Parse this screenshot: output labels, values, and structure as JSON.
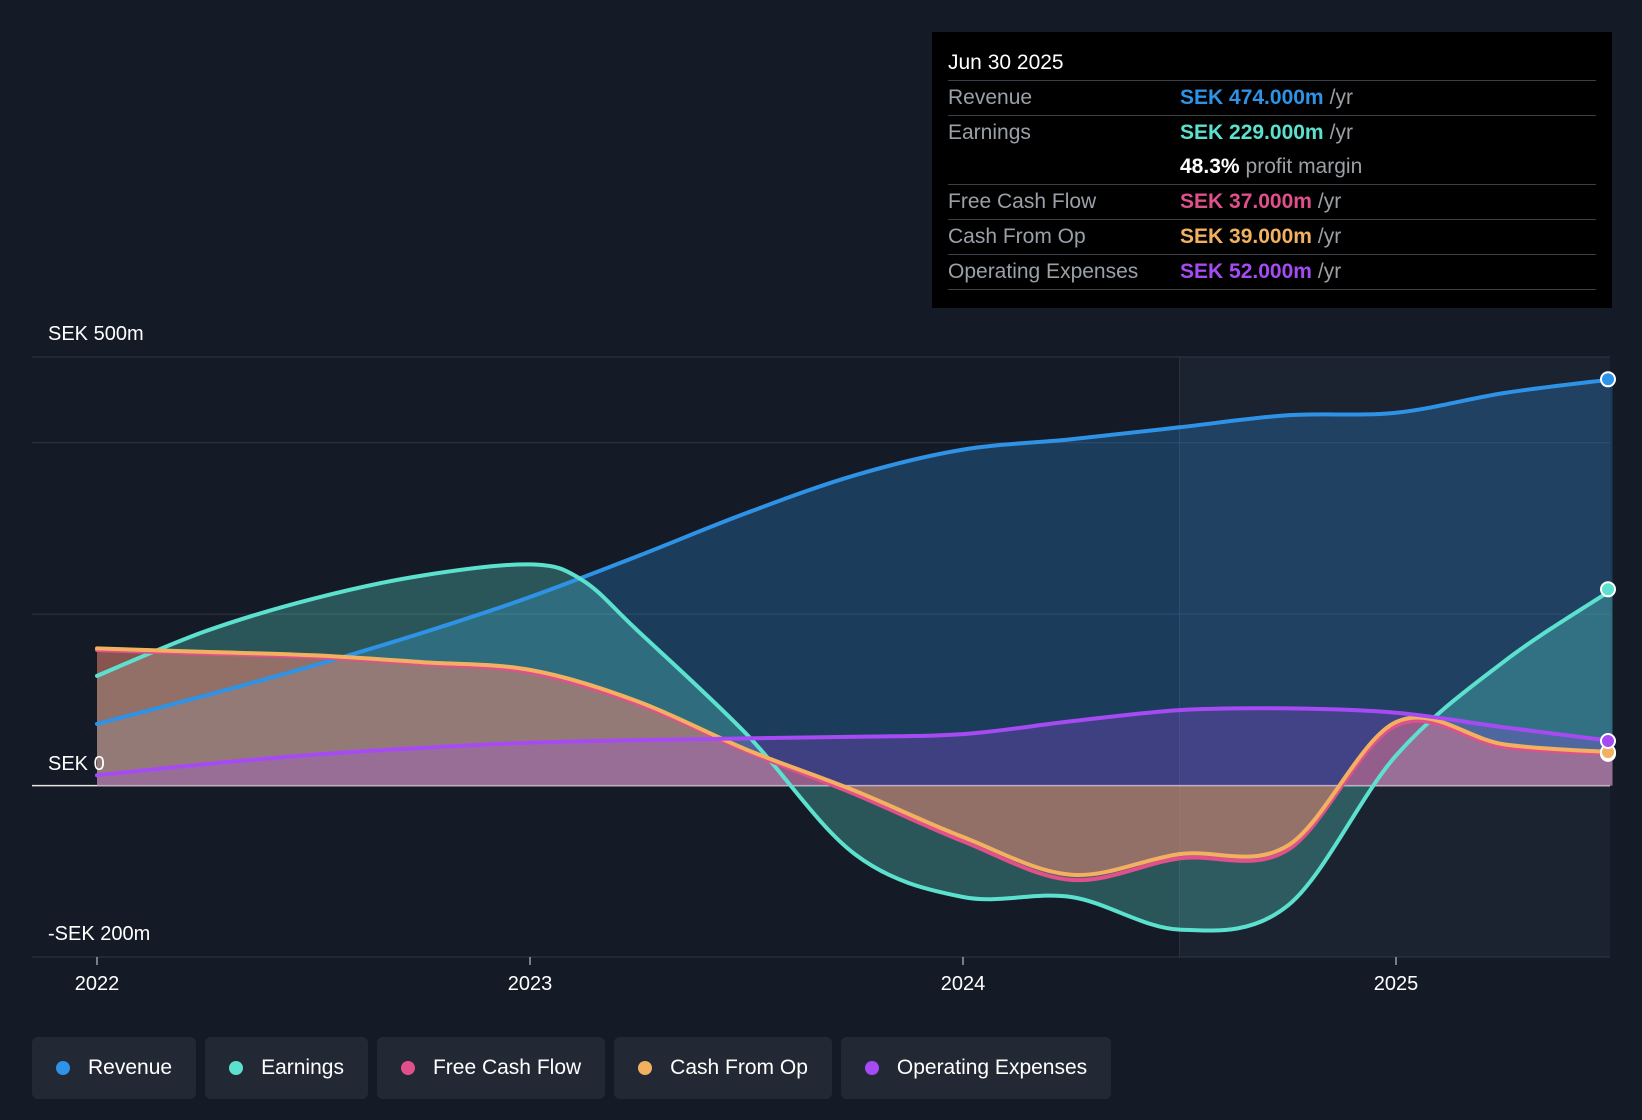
{
  "tooltip": {
    "date": "Jun 30 2025",
    "rows": [
      {
        "label": "Revenue",
        "value": "SEK 474.000m",
        "unit": "/yr",
        "color": "#2e93e6"
      },
      {
        "label": "Earnings",
        "value": "SEK 229.000m",
        "unit": "/yr",
        "color": "#5ce1cf"
      },
      {
        "label": "",
        "value": "48.3%",
        "unit": "profit margin",
        "color": "#ffffff"
      },
      {
        "label": "Free Cash Flow",
        "value": "SEK 37.000m",
        "unit": "/yr",
        "color": "#e0508a"
      },
      {
        "label": "Cash From Op",
        "value": "SEK 39.000m",
        "unit": "/yr",
        "color": "#f2b160"
      },
      {
        "label": "Operating Expenses",
        "value": "SEK 52.000m",
        "unit": "/yr",
        "color": "#a64bf4"
      }
    ]
  },
  "legend": [
    {
      "label": "Revenue",
      "color": "#2e93e6"
    },
    {
      "label": "Earnings",
      "color": "#5ce1cf"
    },
    {
      "label": "Free Cash Flow",
      "color": "#e0508a"
    },
    {
      "label": "Cash From Op",
      "color": "#f2b160"
    },
    {
      "label": "Operating Expenses",
      "color": "#a64bf4"
    }
  ],
  "chart_data": {
    "type": "area",
    "title": "",
    "xlabel": "",
    "ylabel": "",
    "y_axis_labels": [
      "SEK 500m",
      "SEK 0",
      "-SEK 200m"
    ],
    "x_ticks": [
      {
        "label": "2022",
        "value": 2022.0
      },
      {
        "label": "2023",
        "value": 2023.0
      },
      {
        "label": "2024",
        "value": 2024.0
      },
      {
        "label": "2025",
        "value": 2025.0
      }
    ],
    "xlim": [
      2021.85,
      2025.5
    ],
    "ylim": [
      -200,
      500
    ],
    "forecast_start": 2024.5,
    "series": [
      {
        "name": "Revenue",
        "color": "#2e93e6",
        "x": [
          2022.0,
          2022.25,
          2022.5,
          2022.75,
          2023.0,
          2023.25,
          2023.5,
          2023.75,
          2024.0,
          2024.25,
          2024.5,
          2024.75,
          2025.0,
          2025.25,
          2025.5
        ],
        "y": [
          72,
          105,
          140,
          178,
          220,
          268,
          318,
          362,
          392,
          404,
          418,
          432,
          435,
          458,
          474
        ]
      },
      {
        "name": "Earnings",
        "color": "#5ce1cf",
        "x": [
          2022.0,
          2022.25,
          2022.5,
          2022.75,
          2023.0,
          2023.12,
          2023.25,
          2023.5,
          2023.75,
          2024.0,
          2024.25,
          2024.5,
          2024.75,
          2025.0,
          2025.25,
          2025.5
        ],
        "y": [
          128,
          180,
          218,
          245,
          258,
          240,
          180,
          60,
          -80,
          -130,
          -130,
          -168,
          -140,
          35,
          145,
          229
        ]
      },
      {
        "name": "Free Cash Flow",
        "color": "#e0508a",
        "x": [
          2022.0,
          2022.25,
          2022.5,
          2022.75,
          2023.0,
          2023.25,
          2023.5,
          2023.75,
          2024.0,
          2024.25,
          2024.5,
          2024.75,
          2025.0,
          2025.25,
          2025.5
        ],
        "y": [
          158,
          154,
          150,
          142,
          132,
          95,
          40,
          -10,
          -65,
          -110,
          -85,
          -75,
          70,
          45,
          37
        ]
      },
      {
        "name": "Cash From Op",
        "color": "#f2b160",
        "x": [
          2022.0,
          2022.25,
          2022.5,
          2022.75,
          2023.0,
          2023.25,
          2023.5,
          2023.75,
          2024.0,
          2024.25,
          2024.5,
          2024.75,
          2025.0,
          2025.25,
          2025.5
        ],
        "y": [
          160,
          156,
          152,
          144,
          135,
          98,
          42,
          -6,
          -60,
          -104,
          -80,
          -70,
          74,
          48,
          39
        ]
      },
      {
        "name": "Operating Expenses",
        "color": "#a64bf4",
        "x": [
          2022.0,
          2022.25,
          2022.5,
          2022.75,
          2023.0,
          2023.25,
          2023.5,
          2023.75,
          2024.0,
          2024.25,
          2024.5,
          2024.75,
          2025.0,
          2025.25,
          2025.5
        ],
        "y": [
          12,
          25,
          36,
          44,
          50,
          53,
          55,
          57,
          60,
          75,
          88,
          90,
          85,
          68,
          52
        ]
      }
    ]
  }
}
